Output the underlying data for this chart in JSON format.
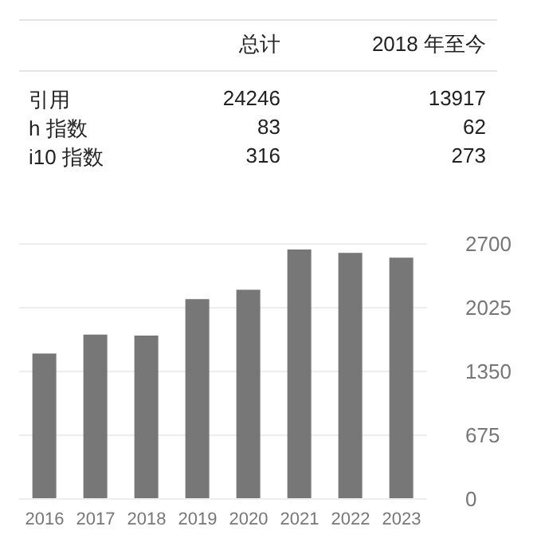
{
  "chart_data": [
    {
      "type": "other",
      "categories": [
        "引用",
        "h 指数",
        "i10 指数"
      ],
      "data_labels": true,
      "series": [
        {
          "name": "总计",
          "values": [
            24246,
            83,
            316
          ]
        },
        {
          "name": "2018 年至今",
          "values": [
            13917,
            62,
            273
          ]
        }
      ]
    },
    {
      "type": "bar",
      "categories": [
        "2016",
        "2017",
        "2018",
        "2019",
        "2020",
        "2021",
        "2022",
        "2023"
      ],
      "values": [
        1540,
        1740,
        1730,
        2115,
        2215,
        2640,
        2605,
        2555
      ],
      "color": "#777777",
      "ylim": [
        0,
        2700
      ],
      "yticks": [
        0,
        675,
        1350,
        2025,
        2700
      ],
      "grid": "y"
    }
  ]
}
